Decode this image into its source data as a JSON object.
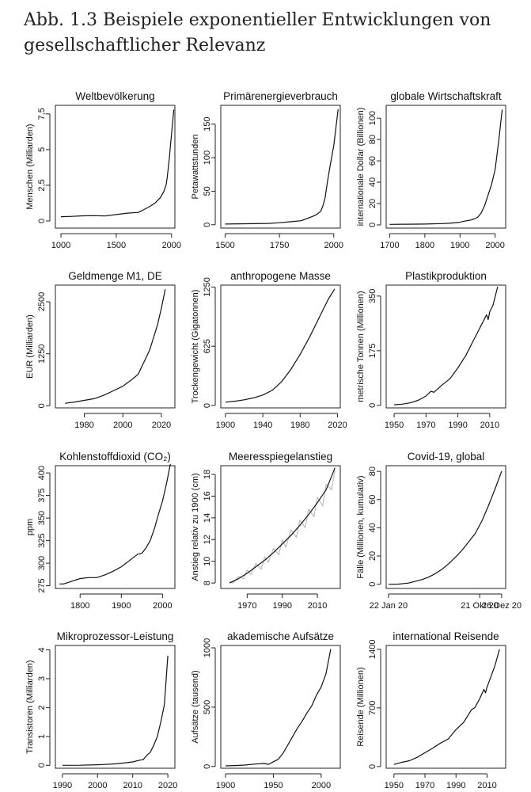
{
  "caption": "Abb. 1.3  Beispiele exponentieller Entwicklungen von gesellschaftlicher Relevanz",
  "chart_data": [
    {
      "type": "line",
      "title": "Weltbevölkerung",
      "ylabel": "Menschen (Milliarden)",
      "xlim": [
        950,
        2030
      ],
      "ylim": [
        -0.5,
        8.1
      ],
      "xticks": [
        1000,
        1500,
        2000
      ],
      "xtick_labels": [
        "1000",
        "1500",
        "2000"
      ],
      "yticks": [
        0,
        2.5,
        5,
        7.5
      ],
      "ytick_labels": [
        "0",
        "2,5",
        "5",
        "7,5"
      ],
      "series": [
        {
          "x": [
            1000,
            1100,
            1200,
            1300,
            1400,
            1500,
            1600,
            1700,
            1750,
            1800,
            1850,
            1900,
            1930,
            1950,
            1960,
            1970,
            1980,
            1990,
            2000,
            2010,
            2020
          ],
          "y": [
            0.3,
            0.32,
            0.36,
            0.37,
            0.35,
            0.45,
            0.55,
            0.6,
            0.8,
            1.0,
            1.25,
            1.65,
            2.07,
            2.5,
            3.0,
            3.7,
            4.4,
            5.3,
            6.1,
            6.9,
            7.8
          ]
        }
      ]
    },
    {
      "type": "line",
      "title": "Primärenergieverbrauch",
      "ylabel": "Petawattstunden",
      "xlim": [
        1480,
        2030
      ],
      "ylim": [
        -5,
        178
      ],
      "xticks": [
        1500,
        1750,
        2000
      ],
      "xtick_labels": [
        "1500",
        "1750",
        "2000"
      ],
      "yticks": [
        0,
        50,
        100,
        150
      ],
      "ytick_labels": [
        "0",
        "50",
        "100",
        "150"
      ],
      "series": [
        {
          "x": [
            1500,
            1600,
            1700,
            1750,
            1800,
            1850,
            1900,
            1920,
            1940,
            1950,
            1960,
            1970,
            1980,
            1990,
            2000,
            2010,
            2020
          ],
          "y": [
            1,
            1.5,
            2,
            3,
            4.5,
            6,
            12,
            15,
            20,
            28,
            40,
            62,
            82,
            100,
            118,
            145,
            172
          ]
        }
      ]
    },
    {
      "type": "line",
      "title": "globale Wirtschaftskraft",
      "ylabel": "internationale Dollar (Billionen)",
      "xlim": [
        1690,
        2030
      ],
      "ylim": [
        -3,
        112
      ],
      "xticks": [
        1700,
        1800,
        1900,
        2000
      ],
      "xtick_labels": [
        "1700",
        "1800",
        "1900",
        "2000"
      ],
      "yticks": [
        0,
        20,
        40,
        60,
        80,
        100
      ],
      "ytick_labels": [
        "0",
        "20",
        "40",
        "60",
        "80",
        "100"
      ],
      "series": [
        {
          "x": [
            1700,
            1750,
            1800,
            1850,
            1870,
            1900,
            1913,
            1930,
            1940,
            1950,
            1960,
            1970,
            1980,
            1990,
            2000,
            2010,
            2020
          ],
          "y": [
            0.5,
            0.6,
            0.8,
            1.2,
            1.5,
            2.5,
            3.5,
            4.5,
            5.5,
            7,
            11,
            18,
            28,
            38,
            52,
            78,
            108
          ]
        }
      ]
    },
    {
      "type": "line",
      "title": "Geldmenge M1, DE",
      "ylabel": "EUR (Milliarden)",
      "xlim": [
        1965,
        2027
      ],
      "ylim": [
        -50,
        2900
      ],
      "xticks": [
        1980,
        2000,
        2020
      ],
      "xtick_labels": [
        "1980",
        "2000",
        "2020"
      ],
      "yticks": [
        0,
        1250,
        2500
      ],
      "ytick_labels": [
        "0",
        "1250",
        "2500"
      ],
      "series": [
        {
          "x": [
            1970,
            1975,
            1980,
            1985,
            1990,
            1995,
            2000,
            2002,
            2005,
            2008,
            2010,
            2012,
            2014,
            2016,
            2018,
            2020,
            2022
          ],
          "y": [
            60,
            90,
            130,
            170,
            250,
            360,
            470,
            540,
            640,
            760,
            960,
            1150,
            1350,
            1650,
            1950,
            2350,
            2800
          ]
        }
      ]
    },
    {
      "type": "line",
      "title": "anthropogene Masse",
      "ylabel": "Trockengewicht (Gigatonnen)",
      "xlim": [
        1895,
        2023
      ],
      "ylim": [
        -25,
        1270
      ],
      "xticks": [
        1900,
        1940,
        1980,
        2020
      ],
      "xtick_labels": [
        "1900",
        "1940",
        "1980",
        "2020"
      ],
      "yticks": [
        0,
        625,
        1250
      ],
      "ytick_labels": [
        "0",
        "625",
        "1250"
      ],
      "series": [
        {
          "x": [
            1900,
            1910,
            1920,
            1930,
            1940,
            1950,
            1960,
            1970,
            1980,
            1990,
            2000,
            2010,
            2017
          ],
          "y": [
            35,
            45,
            60,
            80,
            110,
            160,
            250,
            380,
            540,
            720,
            920,
            1120,
            1230
          ]
        }
      ]
    },
    {
      "type": "line",
      "title": "Plastikproduktion",
      "ylabel": "metrische Tonnen (Millionen)",
      "xlim": [
        1945,
        2020
      ],
      "ylim": [
        -8,
        385
      ],
      "xticks": [
        1950,
        1970,
        1990,
        2010
      ],
      "xtick_labels": [
        "1950",
        "1970",
        "1990",
        "2010"
      ],
      "yticks": [
        0,
        175,
        350
      ],
      "ytick_labels": [
        "0",
        "175",
        "350"
      ],
      "series": [
        {
          "x": [
            1950,
            1955,
            1960,
            1965,
            1970,
            1973,
            1975,
            1980,
            1985,
            1990,
            1995,
            2000,
            2005,
            2008,
            2009,
            2010,
            2012,
            2015
          ],
          "y": [
            2,
            4,
            8,
            16,
            30,
            45,
            42,
            65,
            85,
            120,
            160,
            210,
            260,
            290,
            275,
            300,
            320,
            380
          ]
        }
      ]
    },
    {
      "type": "line",
      "title": "Kohlenstoffdioxid (CO₂)",
      "ylabel": "ppm",
      "xlim": [
        1740,
        2030
      ],
      "ylim": [
        272,
        408
      ],
      "xticks": [
        1800,
        1900,
        2000
      ],
      "xtick_labels": [
        "1800",
        "1900",
        "2000"
      ],
      "yticks": [
        275,
        300,
        325,
        350,
        375,
        400
      ],
      "ytick_labels": [
        "275",
        "300",
        "325",
        "350",
        "375",
        "400"
      ],
      "series": [
        {
          "x": [
            1750,
            1760,
            1780,
            1800,
            1820,
            1840,
            1860,
            1880,
            1900,
            1920,
            1940,
            1950,
            1960,
            1970,
            1980,
            1990,
            2000,
            2010,
            2019
          ],
          "y": [
            277,
            277,
            280,
            283,
            284,
            284,
            287,
            291,
            296,
            303,
            310,
            311,
            317,
            325,
            338,
            354,
            369,
            389,
            410
          ]
        }
      ]
    },
    {
      "type": "line",
      "title": "Meeresspiegelanstieg",
      "ylabel": "Anstieg relativ zu 1900 (cm)",
      "xlim": [
        1955,
        2023
      ],
      "ylim": [
        7.5,
        18.8
      ],
      "xticks": [
        1970,
        1990,
        2010
      ],
      "xtick_labels": [
        "1970",
        "1990",
        "2010"
      ],
      "yticks": [
        8,
        10,
        12,
        14,
        16,
        18
      ],
      "ytick_labels": [
        "8",
        "10",
        "12",
        "14",
        "16",
        "18"
      ],
      "series": [
        {
          "x": [
            1960,
            1965,
            1970,
            1975,
            1980,
            1985,
            1990,
            1995,
            2000,
            2005,
            2010,
            2015,
            2020
          ],
          "y": [
            8.0,
            8.4,
            8.9,
            9.5,
            10.1,
            10.8,
            11.6,
            12.4,
            13.3,
            14.3,
            15.4,
            16.6,
            18.6
          ]
        },
        {
          "x": [
            1960,
            1962,
            1965,
            1968,
            1970,
            1972,
            1975,
            1978,
            1980,
            1982,
            1985,
            1988,
            1990,
            1992,
            1995,
            1998,
            2000,
            2003,
            2005,
            2008,
            2010,
            2013,
            2015,
            2018,
            2020
          ],
          "y": [
            8.1,
            8.0,
            8.6,
            8.4,
            9.2,
            8.8,
            9.8,
            9.3,
            10.4,
            9.9,
            11.2,
            10.6,
            12.0,
            11.3,
            12.9,
            12.2,
            13.8,
            13.1,
            14.8,
            14.1,
            15.9,
            15.1,
            17.1,
            16.6,
            18.4
          ]
        }
      ]
    },
    {
      "type": "line",
      "title": "Covid-19, global",
      "ylabel": "Fälle (Millionen, kumulativ)",
      "xlim": [
        -7,
        351
      ],
      "ylim": [
        -3,
        84
      ],
      "xticks": [
        0,
        273,
        339
      ],
      "xtick_labels": [
        "22 Jan 20",
        "21 Okt 20",
        "26 Dez 20"
      ],
      "series": [
        {
          "x": [
            0,
            30,
            60,
            80,
            100,
            120,
            140,
            160,
            180,
            200,
            220,
            240,
            260,
            280,
            300,
            320,
            339
          ],
          "y": [
            0,
            0.1,
            0.8,
            2.0,
            3.3,
            5.0,
            7.5,
            10.5,
            14.5,
            19,
            24,
            30,
            36,
            45,
            56,
            68,
            80
          ]
        }
      ],
      "yticks": [
        0,
        20,
        40,
        60,
        80
      ],
      "ytick_labels": [
        "0",
        "20",
        "40",
        "60",
        "80"
      ]
    },
    {
      "type": "line",
      "title": "Mikroprozessor-Leistung",
      "ylabel": "Transistoren (Milliarden)",
      "xlim": [
        1988,
        2022
      ],
      "ylim": [
        -0.1,
        4.15
      ],
      "xticks": [
        1990,
        2000,
        2010,
        2020
      ],
      "xtick_labels": [
        "1990",
        "2000",
        "2010",
        "2020"
      ],
      "yticks": [
        0,
        1,
        2,
        3,
        4
      ],
      "ytick_labels": [
        "0",
        "1",
        "2",
        "3",
        "4"
      ],
      "series": [
        {
          "x": [
            1990,
            1995,
            2000,
            2005,
            2008,
            2010,
            2012,
            2013,
            2014,
            2015,
            2016,
            2017,
            2018,
            2019,
            2020
          ],
          "y": [
            0.001,
            0.005,
            0.02,
            0.05,
            0.09,
            0.12,
            0.18,
            0.2,
            0.35,
            0.45,
            0.7,
            1.0,
            1.5,
            2.1,
            3.8
          ]
        }
      ]
    },
    {
      "type": "line",
      "title": "akademische Aufsätze",
      "ylabel": "Aufsätze (tausend)",
      "xlim": [
        1895,
        2020
      ],
      "ylim": [
        -15,
        1020
      ],
      "xticks": [
        1900,
        1950,
        2000
      ],
      "xtick_labels": [
        "1900",
        "1950",
        "2000"
      ],
      "yticks": [
        0,
        500,
        1000
      ],
      "ytick_labels": [
        "0",
        "500",
        "1000"
      ],
      "series": [
        {
          "x": [
            1900,
            1910,
            1920,
            1930,
            1940,
            1945,
            1950,
            1955,
            1960,
            1965,
            1970,
            1975,
            1980,
            1985,
            1990,
            1995,
            2000,
            2005,
            2010
          ],
          "y": [
            5,
            8,
            12,
            20,
            25,
            18,
            40,
            60,
            110,
            180,
            250,
            320,
            380,
            450,
            510,
            600,
            670,
            780,
            990
          ]
        }
      ]
    },
    {
      "type": "line",
      "title": "international Reisende",
      "ylabel": "Reisende (Millionen)",
      "xlim": [
        1945,
        2022
      ],
      "ylim": [
        -20,
        1445
      ],
      "xticks": [
        1950,
        1970,
        1990,
        2010
      ],
      "xtick_labels": [
        "1950",
        "1970",
        "1990",
        "2010"
      ],
      "yticks": [
        0,
        700,
        1400
      ],
      "ytick_labels": [
        "0",
        "700",
        "1400"
      ],
      "series": [
        {
          "x": [
            1950,
            1955,
            1960,
            1965,
            1970,
            1975,
            1980,
            1985,
            1990,
            1995,
            2000,
            2002,
            2005,
            2008,
            2009,
            2010,
            2015,
            2018
          ],
          "y": [
            25,
            50,
            70,
            110,
            165,
            220,
            280,
            330,
            440,
            530,
            680,
            700,
            800,
            920,
            880,
            950,
            1200,
            1400
          ]
        }
      ]
    }
  ]
}
